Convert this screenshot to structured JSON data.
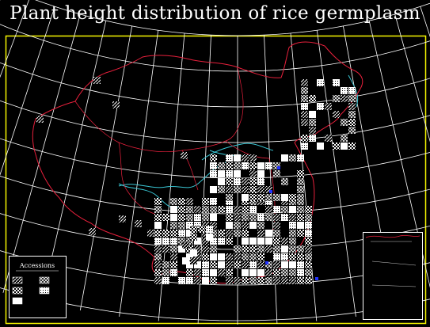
{
  "title": "Plant height distribution of rice germplasm",
  "legend": {
    "title": "Accessions",
    "items": [
      {
        "pattern": "hatch-light",
        "label": ""
      },
      {
        "pattern": "hatch-cross",
        "label": ""
      },
      {
        "pattern": "checker",
        "label": ""
      },
      {
        "pattern": "dense",
        "label": ""
      },
      {
        "pattern": "white",
        "label": ""
      }
    ]
  },
  "colors": {
    "background": "#000000",
    "frame": "#f5f500",
    "graticule": "#ffffff",
    "border": "#e8203c",
    "rivers": "#39c6d4",
    "cells": "#ffffff",
    "inset_frame": "#ffffff"
  }
}
